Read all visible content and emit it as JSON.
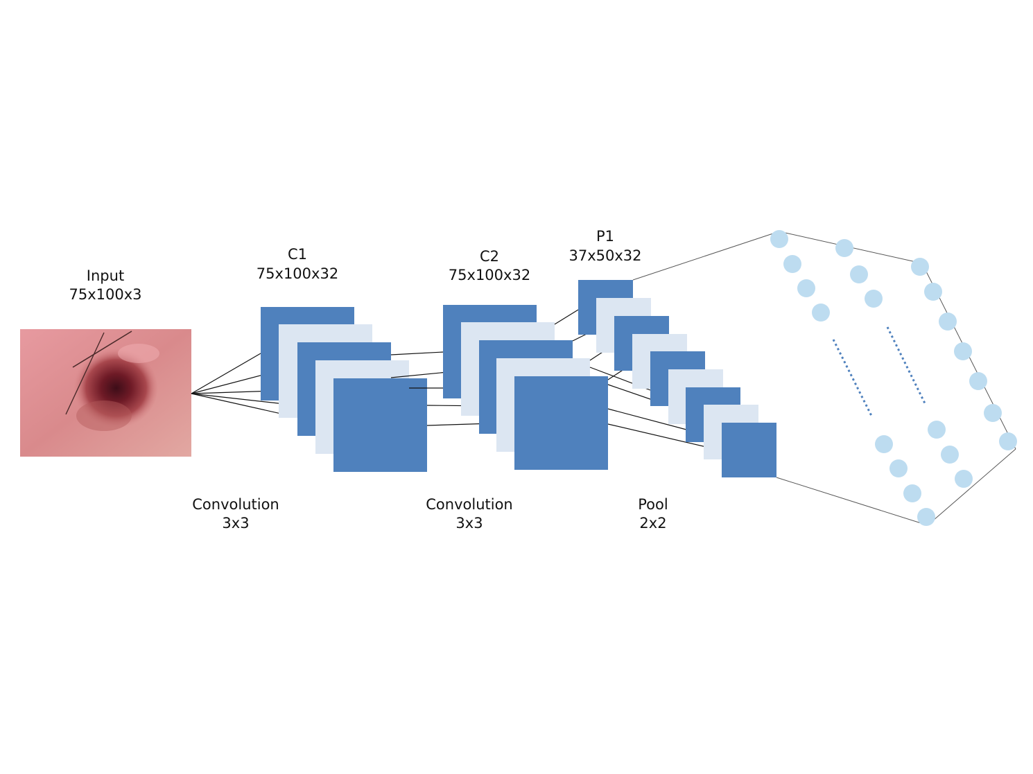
{
  "labels": {
    "input": {
      "name": "Input",
      "dims": "75x100x3"
    },
    "c1": {
      "name": "C1",
      "dims": "75x100x32"
    },
    "c2": {
      "name": "C2",
      "dims": "75x100x32"
    },
    "p1": {
      "name": "P1",
      "dims": "37x50x32"
    },
    "op1": {
      "name": "Convolution",
      "kernel": "3x3"
    },
    "op2": {
      "name": "Convolution",
      "kernel": "3x3"
    },
    "op3": {
      "name": "Pool",
      "kernel": "2x2"
    }
  },
  "colors": {
    "map_dark": "#4f81bd",
    "map_light": "#dce6f2",
    "neuron": "#bddcf0",
    "dots": "#4f81bd",
    "connector": "#111111",
    "skin": "#d9888a",
    "lesion": "#6e1a26"
  },
  "icons": {
    "input_image": "skin-lesion-photo"
  }
}
